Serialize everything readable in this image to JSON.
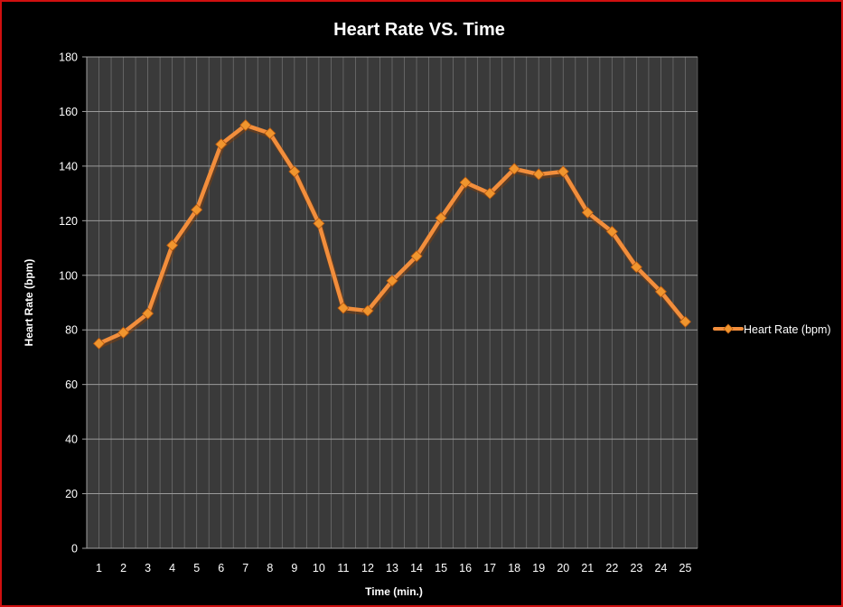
{
  "chart_data": {
    "type": "line",
    "title": "Heart Rate VS. Time",
    "xlabel": "Time (min.)",
    "ylabel": "Heart Rate (bpm)",
    "categories": [
      "1",
      "2",
      "3",
      "4",
      "5",
      "6",
      "7",
      "8",
      "9",
      "10",
      "11",
      "12",
      "13",
      "14",
      "15",
      "16",
      "17",
      "18",
      "19",
      "20",
      "21",
      "22",
      "23",
      "24",
      "25"
    ],
    "series": [
      {
        "name": "Heart Rate (bpm)",
        "values": [
          75,
          79,
          86,
          111,
          124,
          148,
          155,
          152,
          138,
          119,
          88,
          87,
          98,
          107,
          121,
          134,
          130,
          139,
          137,
          138,
          123,
          116,
          103,
          94,
          83
        ]
      }
    ],
    "ylim": [
      0,
      180
    ],
    "yticks": [
      "0",
      "20",
      "40",
      "60",
      "80",
      "100",
      "120",
      "140",
      "160",
      "180"
    ],
    "grid": true,
    "legend": "right",
    "colors": {
      "background": "#000000",
      "plot_area": "#3a3a3a",
      "grid": "#8a8a8a",
      "line": "#f28e3c",
      "marker": "#f0952e",
      "frame": "#d01010"
    }
  }
}
